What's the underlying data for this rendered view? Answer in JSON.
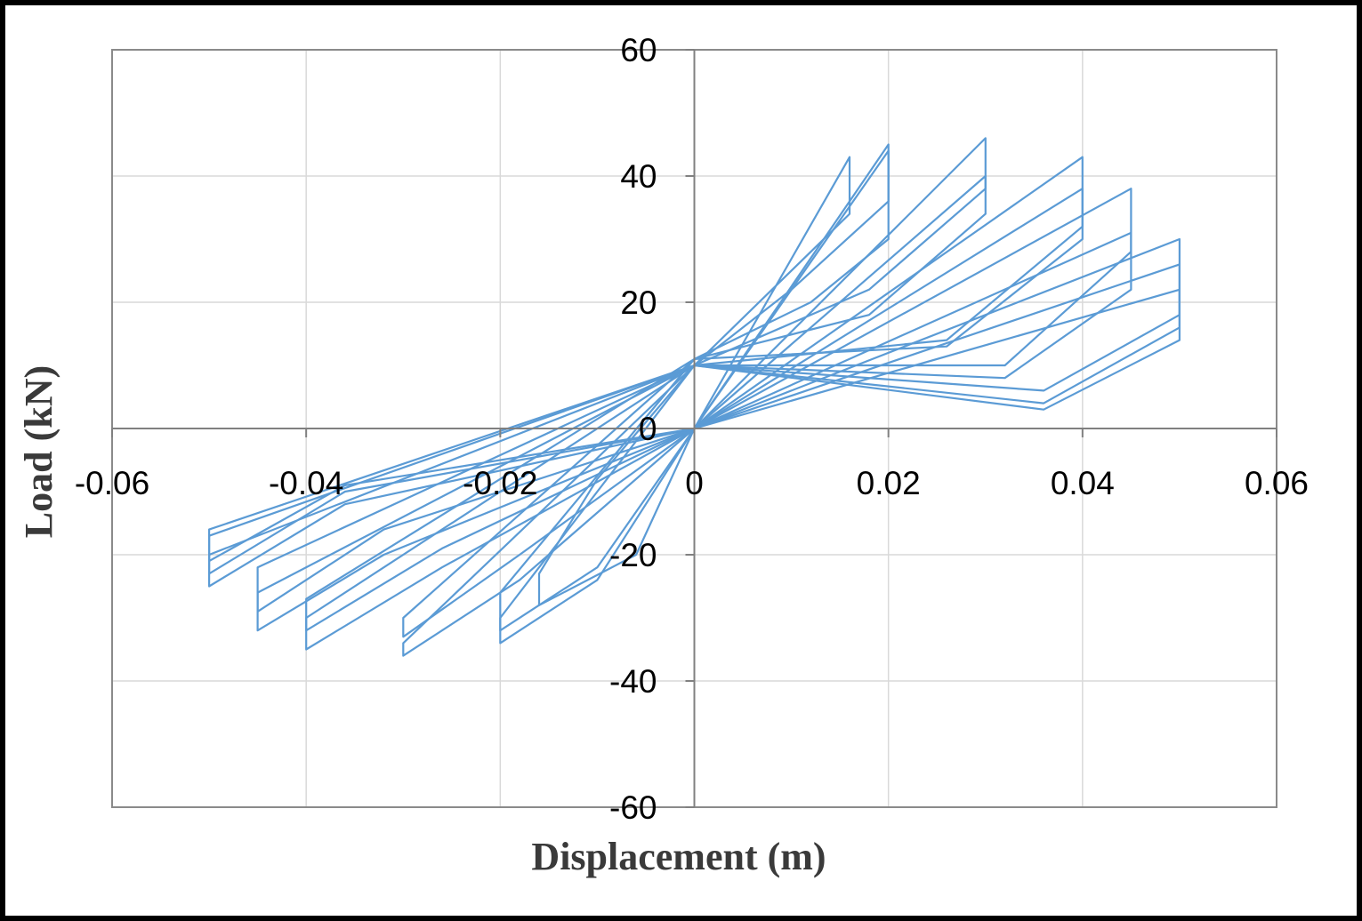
{
  "chart_data": {
    "type": "line",
    "title": "",
    "xlabel": "Displacement (m)",
    "ylabel": "Load (kN)",
    "xlim": [
      -0.06,
      0.06
    ],
    "ylim": [
      -60,
      60
    ],
    "x_ticks": [
      "-0.06",
      "-0.04",
      "-0.02",
      "0",
      "0.02",
      "0.04",
      "0.06"
    ],
    "y_ticks": [
      "60",
      "40",
      "20",
      "0",
      "-20",
      "-40",
      "-60"
    ],
    "grid": true,
    "legend": "none",
    "series_color": "#5b9bd5",
    "series": [
      {
        "x": [
          0,
          0.016,
          0.016,
          0.0,
          -0.01,
          -0.016,
          -0.016,
          -0.006,
          0.0
        ],
        "y": [
          0,
          43,
          34,
          10,
          -8,
          -23,
          -28,
          -20,
          0
        ]
      },
      {
        "x": [
          0,
          0.02,
          0.02,
          0.01,
          0.0,
          -0.02,
          -0.02,
          -0.01,
          0.0
        ],
        "y": [
          0,
          45,
          36,
          22,
          10,
          -30,
          -34,
          -24,
          0
        ]
      },
      {
        "x": [
          0,
          0.02,
          0.02,
          0.012,
          0.0,
          -0.02,
          -0.02,
          -0.01,
          0.0
        ],
        "y": [
          0,
          44,
          30,
          20,
          11,
          -26,
          -32,
          -22,
          0
        ]
      },
      {
        "x": [
          0,
          0.03,
          0.03,
          0.018,
          0.0,
          -0.03,
          -0.03,
          -0.018,
          0.0
        ],
        "y": [
          0,
          46,
          38,
          22,
          10,
          -34,
          -36,
          -24,
          0
        ]
      },
      {
        "x": [
          0,
          0.03,
          0.03,
          0.018,
          0.0,
          -0.03,
          -0.03,
          -0.018,
          0.0
        ],
        "y": [
          0,
          40,
          34,
          18,
          11,
          -30,
          -33,
          -20,
          0
        ]
      },
      {
        "x": [
          0,
          0.04,
          0.04,
          0.026,
          0.0,
          -0.04,
          -0.04,
          -0.026,
          0.0
        ],
        "y": [
          0,
          43,
          32,
          14,
          10,
          -30,
          -35,
          -22,
          0
        ]
      },
      {
        "x": [
          0,
          0.04,
          0.04,
          0.026,
          0.0,
          -0.04,
          -0.04,
          -0.026,
          0.0
        ],
        "y": [
          0,
          38,
          30,
          13,
          11,
          -27,
          -32,
          -19,
          0
        ]
      },
      {
        "x": [
          0,
          0.045,
          0.045,
          0.032,
          0.0,
          -0.045,
          -0.045,
          -0.032,
          0.0
        ],
        "y": [
          0,
          38,
          28,
          10,
          10,
          -26,
          -32,
          -20,
          0
        ]
      },
      {
        "x": [
          0,
          0.045,
          0.045,
          0.032,
          0.0,
          -0.045,
          -0.045,
          -0.032,
          0.0
        ],
        "y": [
          0,
          31,
          22,
          8,
          10,
          -22,
          -29,
          -16,
          0
        ]
      },
      {
        "x": [
          0,
          0.05,
          0.05,
          0.036,
          0.0,
          -0.05,
          -0.05,
          -0.036,
          0.0
        ],
        "y": [
          0,
          30,
          18,
          6,
          10,
          -20,
          -25,
          -12,
          0
        ]
      },
      {
        "x": [
          0,
          0.05,
          0.05,
          0.036,
          0.0,
          -0.05,
          -0.05,
          -0.036,
          0.0
        ],
        "y": [
          0,
          26,
          16,
          4,
          10,
          -17,
          -23,
          -10,
          0
        ]
      },
      {
        "x": [
          0,
          0.05,
          0.05,
          0.036,
          0.0,
          -0.05,
          -0.05,
          -0.036,
          0.0
        ],
        "y": [
          0,
          22,
          14,
          3,
          10,
          -16,
          -21,
          -9,
          0
        ]
      }
    ]
  }
}
